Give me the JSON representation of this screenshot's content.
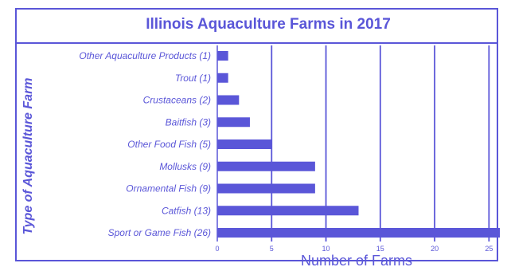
{
  "colors": {
    "accent": "#5a56d8",
    "bar": "#5a56d8",
    "text": "#5a56d8"
  },
  "chart_data": {
    "type": "bar",
    "orientation": "horizontal",
    "title": "Illinois Aquaculture Farms in 2017",
    "xlabel": "Number of Farms",
    "ylabel": "Type of Aquaculture Farm",
    "categories": [
      "Other Aquaculture Products (1)",
      "Trout (1)",
      "Crustaceans (2)",
      "Baitfish (3)",
      "Other Food Fish (5)",
      "Mollusks (9)",
      "Ornamental Fish (9)",
      "Catfish (13)",
      "Sport or Game Fish (26)"
    ],
    "values": [
      1,
      1,
      2,
      3,
      5,
      9,
      9,
      13,
      26
    ],
    "xlim": [
      0,
      26
    ],
    "xticks": [
      0,
      5,
      10,
      15,
      20,
      25
    ],
    "grid": "vertical"
  }
}
